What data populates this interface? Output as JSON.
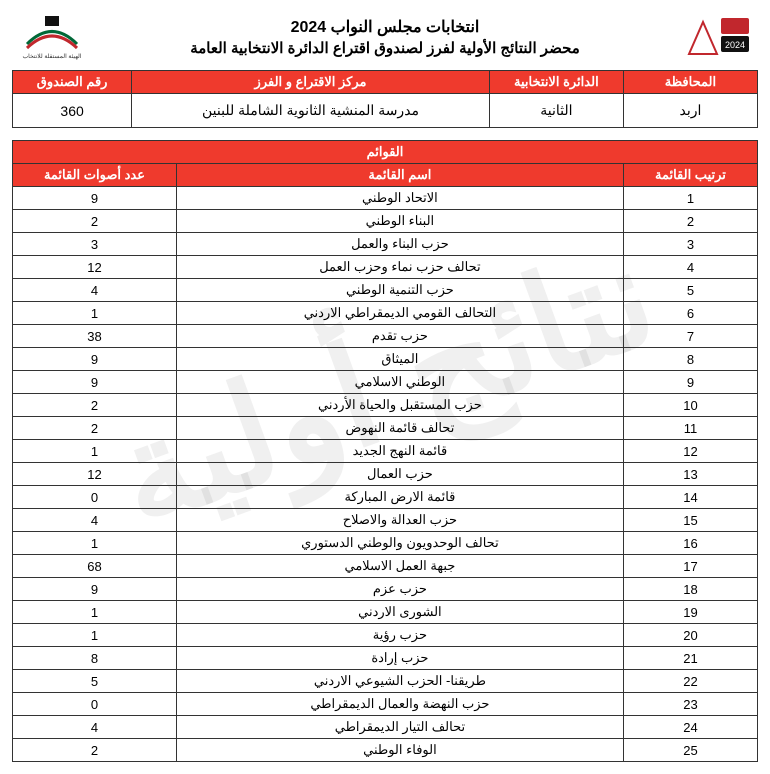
{
  "watermark_text": "نتائج أولية",
  "titles": {
    "main": "انتخابات مجلس النواب 2024",
    "sub": "محضر النتائج الأولية لفرز لصندوق اقتراع الدائرة الانتخابية العامة"
  },
  "info_headers": {
    "governorate": "المحافظة",
    "district": "الدائرة الانتخابية",
    "center": "مركز الاقتراع و الفرز",
    "box": "رقم الصندوق"
  },
  "info_values": {
    "governorate": "اربد",
    "district": "الثانية",
    "center": "مدرسة المنشية الثانوية الشاملة للبنين",
    "box": "360"
  },
  "lists_section_title": "القوائم",
  "results_headers": {
    "rank": "ترتيب القائمة",
    "name": "اسم القائمة",
    "votes": "عدد أصوات القائمة"
  },
  "rows": [
    {
      "rank": "1",
      "name": "الاتحاد الوطني",
      "votes": "9"
    },
    {
      "rank": "2",
      "name": "البناء الوطني",
      "votes": "2"
    },
    {
      "rank": "3",
      "name": "حزب البناء والعمل",
      "votes": "3"
    },
    {
      "rank": "4",
      "name": "تحالف حزب نماء وحزب العمل",
      "votes": "12"
    },
    {
      "rank": "5",
      "name": "حزب التنمية الوطني",
      "votes": "4"
    },
    {
      "rank": "6",
      "name": "التحالف القومي الديمقراطي الاردني",
      "votes": "1"
    },
    {
      "rank": "7",
      "name": "حزب تقدم",
      "votes": "38"
    },
    {
      "rank": "8",
      "name": "الميثاق",
      "votes": "9"
    },
    {
      "rank": "9",
      "name": "الوطني الاسلامي",
      "votes": "9"
    },
    {
      "rank": "10",
      "name": "حزب المستقبل والحياة الأردني",
      "votes": "2"
    },
    {
      "rank": "11",
      "name": "تحالف قائمة النهوض",
      "votes": "2"
    },
    {
      "rank": "12",
      "name": "قائمة النهج الجديد",
      "votes": "1"
    },
    {
      "rank": "13",
      "name": "حزب العمال",
      "votes": "12"
    },
    {
      "rank": "14",
      "name": "قائمة الارض المباركة",
      "votes": "0"
    },
    {
      "rank": "15",
      "name": "حزب العدالة والاصلاح",
      "votes": "4"
    },
    {
      "rank": "16",
      "name": "تحالف الوحدويون والوطني الدستوري",
      "votes": "1"
    },
    {
      "rank": "17",
      "name": "جبهة العمل الاسلامي",
      "votes": "68"
    },
    {
      "rank": "18",
      "name": "حزب عزم",
      "votes": "9"
    },
    {
      "rank": "19",
      "name": "الشورى الاردني",
      "votes": "1"
    },
    {
      "rank": "20",
      "name": "حزب رؤية",
      "votes": "1"
    },
    {
      "rank": "21",
      "name": "حزب إرادة",
      "votes": "8"
    },
    {
      "rank": "22",
      "name": "طريقنا- الحزب الشيوعي الاردني",
      "votes": "5"
    },
    {
      "rank": "23",
      "name": "حزب النهضة والعمال الديمقراطي",
      "votes": "0"
    },
    {
      "rank": "24",
      "name": "تحالف التيار الديمقراطي",
      "votes": "4"
    },
    {
      "rank": "25",
      "name": "الوفاء الوطني",
      "votes": "2"
    }
  ],
  "colors": {
    "header_bg": "#ef3a2d",
    "header_fg": "#ffffff",
    "border": "#333333"
  }
}
